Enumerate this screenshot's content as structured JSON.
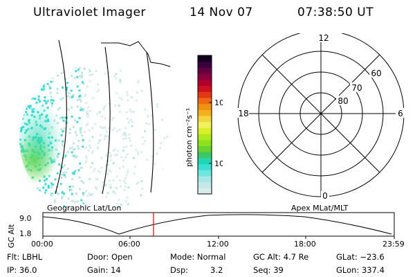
{
  "header": {
    "title": "Ultraviolet Imager",
    "date": "14 Nov 07",
    "time": "07:38:50 UT"
  },
  "colorbar": {
    "unit_label": "photon cm⁻²s⁻¹",
    "ticks": [
      "100",
      "10"
    ],
    "colors": [
      "#d9ecec",
      "#c6e8e8",
      "#a6e8e6",
      "#6fe6dd",
      "#38e0d4",
      "#1fd6b3",
      "#3ec765",
      "#66d42e",
      "#8ee01e",
      "#b0e820",
      "#d8ef28",
      "#f0f05a",
      "#f2d640",
      "#f2b020",
      "#f09010",
      "#ec6a10",
      "#e23818",
      "#cc1020",
      "#b0002c",
      "#8a003c",
      "#640040",
      "#3a0040",
      "#140020"
    ]
  },
  "polar_plot": {
    "mlt_labels": {
      "top": "12",
      "right": "6",
      "bottom": "0",
      "left": "18"
    },
    "lat_labels": [
      "80",
      "70",
      "60"
    ]
  },
  "projection_labels": {
    "left": "Geographic Lat/Lon",
    "right": "Apex MLat/MLT"
  },
  "timeline": {
    "ylabel": "GC Alt",
    "yticks": [
      "9.0",
      "1.8"
    ],
    "xticks": [
      "00:00",
      "06:00",
      "12:00",
      "18:00",
      "23:59"
    ]
  },
  "info": {
    "flt": "Flt: LBHL",
    "door": "Door: Open",
    "mode": "Mode: Normal",
    "gc_alt": "GC Alt: 4.7 Re",
    "glat": "GLat: −23.6",
    "ip": "IP: 36.0",
    "gain": "Gain: 14",
    "dsp_label": "Dsp:",
    "dsp_value": "3.2",
    "seq": "Seq: 39",
    "glon": "GLon: 337.4"
  }
}
